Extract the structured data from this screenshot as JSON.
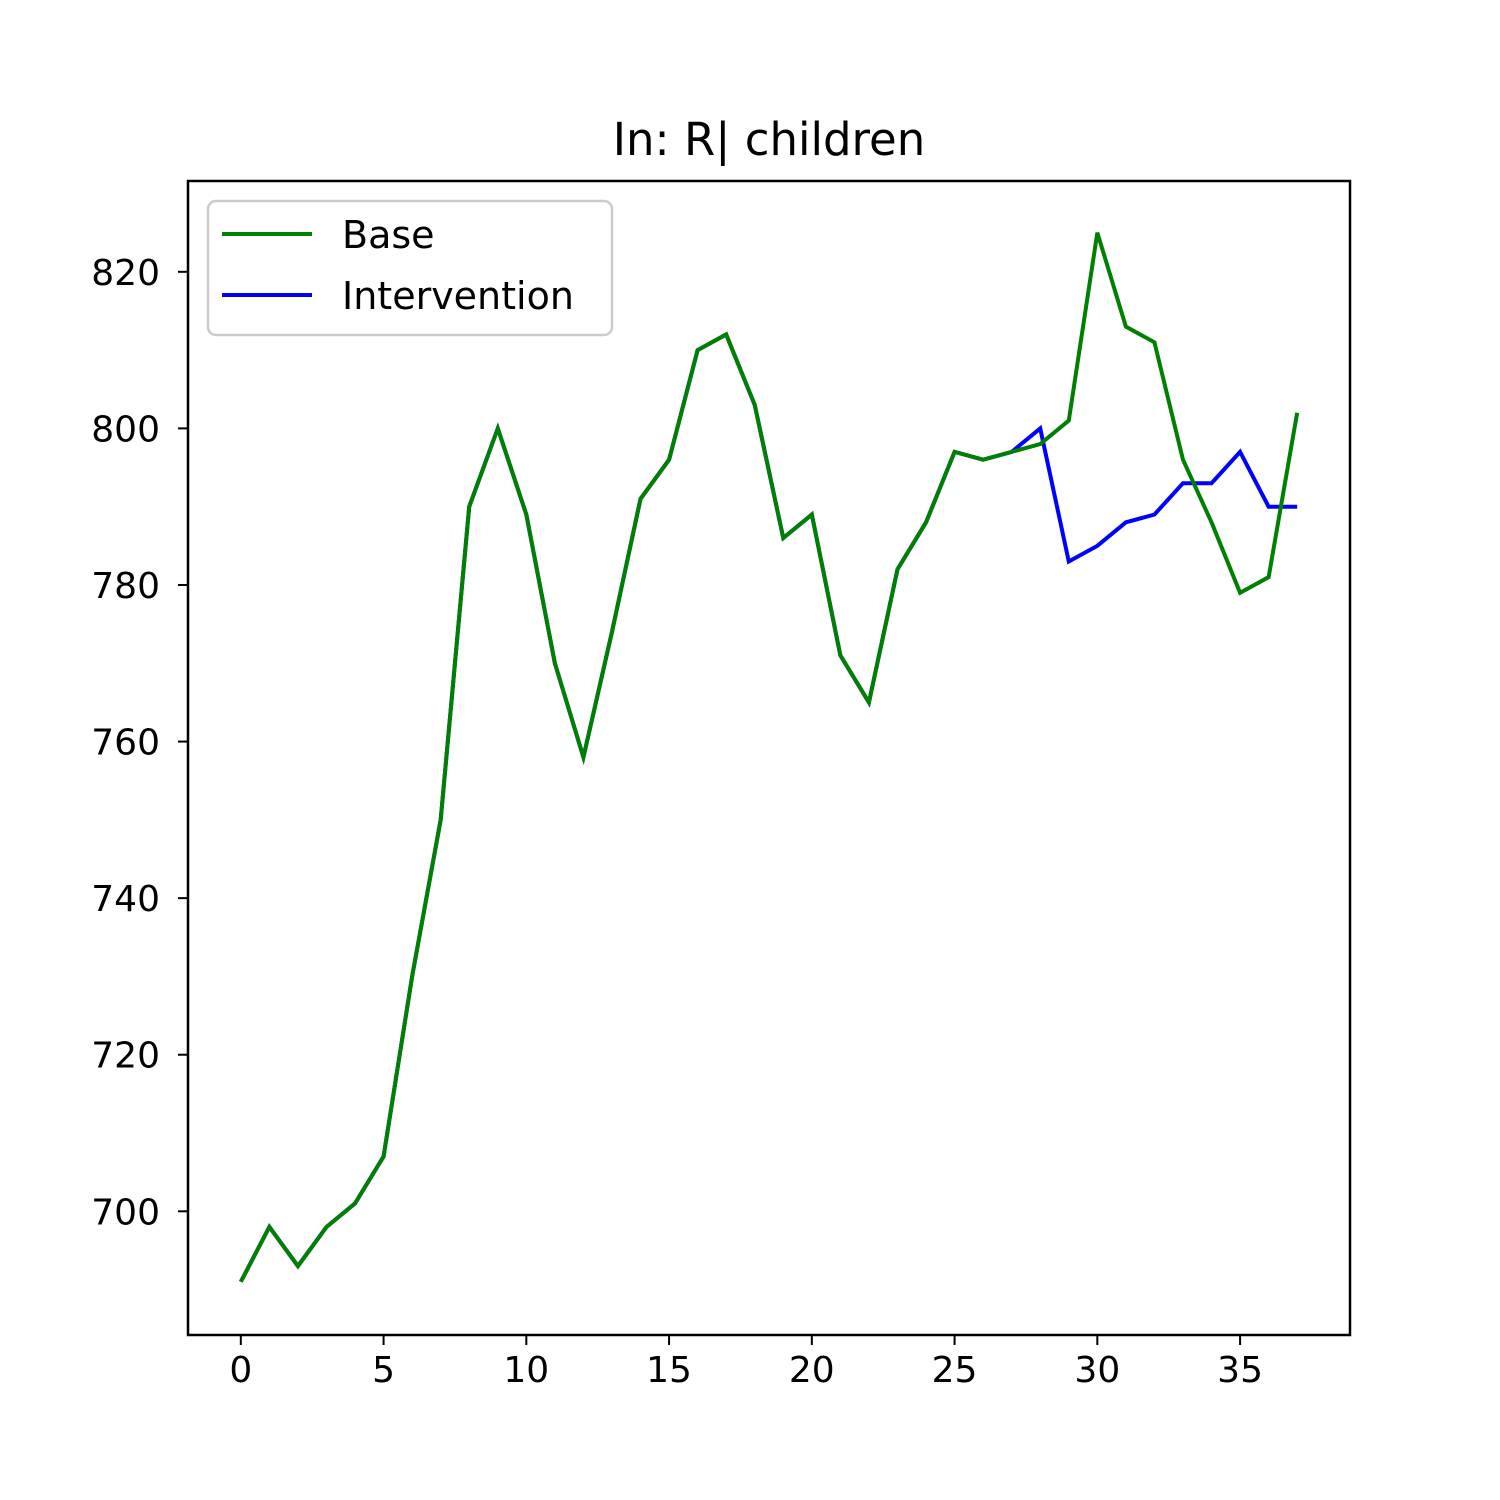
{
  "chart_data": {
    "type": "line",
    "title": "In: R| children",
    "xlabel": "",
    "ylabel": "",
    "xlim": [
      -1.85,
      38.85
    ],
    "ylim": [
      684.2,
      831.6
    ],
    "xticks": [
      0,
      5,
      10,
      15,
      20,
      25,
      30,
      35
    ],
    "yticks": [
      700,
      720,
      740,
      760,
      780,
      800,
      820
    ],
    "grid": false,
    "legend_position": "top-left",
    "x": [
      0,
      1,
      2,
      3,
      4,
      5,
      6,
      7,
      8,
      9,
      10,
      11,
      12,
      13,
      14,
      15,
      16,
      17,
      18,
      19,
      20,
      21,
      22,
      23,
      24,
      25,
      26,
      27,
      28,
      29,
      30,
      31,
      32,
      33,
      34,
      35,
      36,
      37
    ],
    "series": [
      {
        "name": "Intervention",
        "color": "#0000ff",
        "values": [
          691,
          698,
          693,
          698,
          701,
          707,
          730,
          750,
          790,
          800,
          789,
          770,
          758,
          774,
          791,
          796,
          810,
          812,
          803,
          786,
          789,
          771,
          765,
          782,
          788,
          797,
          796,
          797,
          800,
          783,
          785,
          788,
          789,
          793,
          793,
          797,
          790,
          790
        ]
      },
      {
        "name": "Base",
        "color": "#008000",
        "values": [
          691,
          698,
          693,
          698,
          701,
          707,
          730,
          750,
          790,
          800,
          789,
          770,
          758,
          774,
          791,
          796,
          810,
          812,
          803,
          786,
          789,
          771,
          765,
          782,
          788,
          797,
          796,
          797,
          798,
          801,
          825,
          813,
          811,
          796,
          788,
          779,
          781,
          802
        ]
      }
    ],
    "legend_order": [
      "Base",
      "Intervention"
    ]
  }
}
